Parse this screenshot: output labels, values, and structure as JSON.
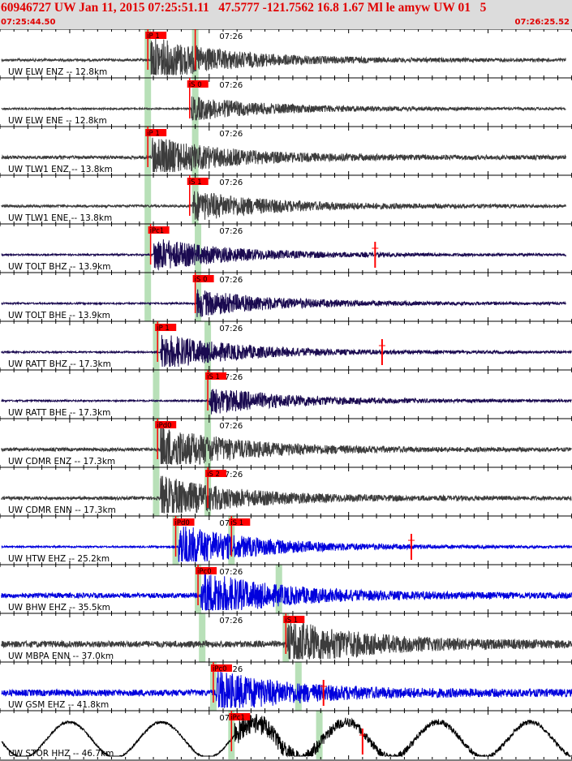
{
  "header": {
    "title": "60946727 UW Jan 11, 2015 07:25:51.11   47.5777 -121.7562 16.8 1.67 Ml le amyw UW 01   5",
    "start_time": "07:25:44.50",
    "end_time": "07:26:25.52"
  },
  "chart_data": {
    "type": "line",
    "title": "60946727 UW Jan 11, 2015 07:25:51.11   47.5777 -121.7562 16.8 1.67 Ml le amyw UW 01   5",
    "xlim": [
      "07:25:44.50",
      "07:26:25.52"
    ],
    "time_tick_label": "07:26",
    "tick_minor_seconds": 1,
    "tick_major_seconds": 10,
    "colors": {
      "trace_dark": "#3c3c3c",
      "trace_blue": "#0000dd",
      "trace_navy": "#1a0a50",
      "pick": "#ff0000",
      "phase_band": "#b8e0b8",
      "grid": "#000000"
    },
    "traces": [
      {
        "label": "UW ELW ENZ -- 12.8km",
        "color": "#3c3c3c",
        "picks": [
          {
            "text": "iP 1",
            "t": 10.6
          },
          {
            "text": "",
            "t": 14.0
          }
        ],
        "bands": [
          10.6,
          14.0
        ],
        "onset": 10.8,
        "amp": 26,
        "noise": 1.5,
        "end": 40.6,
        "spike": null
      },
      {
        "label": "UW ELW ENE -- 12.8km",
        "color": "#3c3c3c",
        "picks": [
          {
            "text": "iS 0",
            "t": 13.6
          }
        ],
        "bands": [
          10.6,
          14.0
        ],
        "onset": 13.7,
        "amp": 12,
        "noise": 1.0,
        "end": 40.6,
        "spike": null
      },
      {
        "label": "UW TLW1 ENZ -- 13.8km",
        "color": "#3c3c3c",
        "picks": [
          {
            "text": "iP 1",
            "t": 10.6
          }
        ],
        "bands": [
          10.6,
          14.0
        ],
        "onset": 10.9,
        "amp": 22,
        "noise": 2.0,
        "end": 40.6,
        "spike": null
      },
      {
        "label": "UW TLW1 ENE -- 13.8km",
        "color": "#3c3c3c",
        "picks": [
          {
            "text": "iS 1",
            "t": 13.6
          }
        ],
        "bands": [
          10.6,
          14.0
        ],
        "onset": 13.8,
        "amp": 16,
        "noise": 1.5,
        "end": 40.6,
        "spike": null
      },
      {
        "label": "UW TOLT BHZ -- 13.9km",
        "color": "#1a0a50",
        "picks": [
          {
            "text": "iPc1",
            "t": 10.8
          }
        ],
        "bands": [
          10.6,
          14.2
        ],
        "onset": 11.0,
        "amp": 18,
        "noise": 1.0,
        "end": 40.6,
        "spike": 26.9
      },
      {
        "label": "UW TOLT BHE -- 13.9km",
        "color": "#1a0a50",
        "picks": [
          {
            "text": "iS 0",
            "t": 14.0
          }
        ],
        "bands": [
          10.6,
          14.2
        ],
        "onset": 14.1,
        "amp": 14,
        "noise": 1.0,
        "end": 40.6,
        "spike": null
      },
      {
        "label": "UW RATT BHZ -- 17.3km",
        "color": "#1a0a50",
        "picks": [
          {
            "text": "iP 1",
            "t": 11.3
          }
        ],
        "bands": [
          11.2,
          14.9
        ],
        "onset": 11.5,
        "amp": 20,
        "noise": 1.0,
        "end": 41.0,
        "spike": 27.4
      },
      {
        "label": "UW RATT BHE -- 17.3km",
        "color": "#1a0a50",
        "picks": [
          {
            "text": "iS 1",
            "t": 14.9
          }
        ],
        "bands": [
          11.2,
          14.9
        ],
        "onset": 15.0,
        "amp": 14,
        "noise": 1.0,
        "end": 41.0,
        "spike": null
      },
      {
        "label": "UW CDMR ENZ -- 17.3km",
        "color": "#3c3c3c",
        "picks": [
          {
            "text": "iPd0",
            "t": 11.3
          }
        ],
        "bands": [
          11.2,
          14.9
        ],
        "onset": 11.5,
        "amp": 26,
        "noise": 2.0,
        "end": 41.0,
        "spike": null
      },
      {
        "label": "UW CDMR ENN -- 17.3km",
        "color": "#3c3c3c",
        "picks": [
          {
            "text": "iS 2",
            "t": 14.9
          }
        ],
        "bands": [
          11.2,
          14.9
        ],
        "onset": 11.5,
        "amp": 24,
        "noise": 2.0,
        "end": 41.0,
        "spike": null
      },
      {
        "label": "UW HTW EHZ -- 25.2km",
        "color": "#0000dd",
        "picks": [
          {
            "text": "iPd0",
            "t": 12.6
          },
          {
            "text": "iS 1",
            "t": 16.6
          }
        ],
        "bands": [
          12.6,
          16.6
        ],
        "onset": 12.8,
        "amp": 26,
        "noise": 1.0,
        "end": 42.0,
        "spike": 29.5
      },
      {
        "label": "UW BHW EHZ -- 35.5km",
        "color": "#0000dd",
        "picks": [
          {
            "text": "iPc0",
            "t": 14.2
          }
        ],
        "bands": [
          14.2,
          20.0
        ],
        "onset": 14.4,
        "amp": 26,
        "noise": 3.0,
        "end": 43.8,
        "spike": null
      },
      {
        "label": "UW MBPA ENN -- 37.0km",
        "color": "#3c3c3c",
        "picks": [
          {
            "text": "iS 1",
            "t": 20.5
          }
        ],
        "bands": [
          14.5,
          20.5
        ],
        "onset": 20.6,
        "amp": 26,
        "noise": 4.0,
        "end": 44.0,
        "spike": null
      },
      {
        "label": "UW GSM EHZ -- 41.8km",
        "color": "#0000dd",
        "picks": [
          {
            "text": "iPc0",
            "t": 15.3
          }
        ],
        "bands": [
          15.3,
          21.4
        ],
        "onset": 15.5,
        "amp": 22,
        "noise": 4.0,
        "end": 44.8,
        "spike": 23.2
      },
      {
        "label": "UW STOR HHZ -- 46.7km",
        "color": "#000000",
        "picks": [
          {
            "text": "iPc1",
            "t": 16.6
          }
        ],
        "bands": [
          16.6,
          22.9
        ],
        "onset": 16.8,
        "amp": 12,
        "noise": 2.0,
        "end": 46.0,
        "spike": 26.0,
        "long_period": true
      }
    ]
  }
}
